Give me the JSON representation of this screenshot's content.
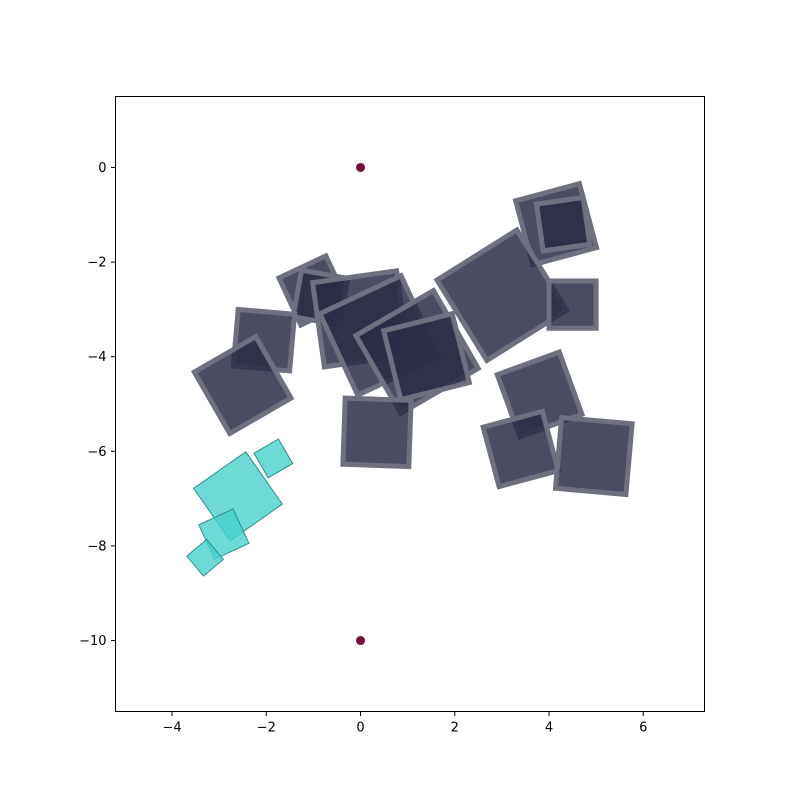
{
  "chart_data": {
    "type": "scatter",
    "title": "",
    "xlabel": "",
    "ylabel": "",
    "xlim": [
      -5.2,
      7.3
    ],
    "ylim": [
      -11.5,
      1.5
    ],
    "xticks": [
      {
        "value": -4,
        "label": "−4"
      },
      {
        "value": -2,
        "label": "−2"
      },
      {
        "value": 0,
        "label": "0"
      },
      {
        "value": 2,
        "label": "2"
      },
      {
        "value": 4,
        "label": "4"
      },
      {
        "value": 6,
        "label": "6"
      }
    ],
    "yticks": [
      {
        "value": 0,
        "label": "0"
      },
      {
        "value": -2,
        "label": "−2"
      },
      {
        "value": -4,
        "label": "−4"
      },
      {
        "value": -6,
        "label": "−6"
      },
      {
        "value": -8,
        "label": "−8"
      },
      {
        "value": -10,
        "label": "−10"
      }
    ],
    "grid": false,
    "legend": "none",
    "series": [
      {
        "marker": "point",
        "color": "#7a0a3c",
        "points": [
          [
            0,
            0
          ],
          [
            0,
            -10
          ]
        ]
      },
      {
        "marker": "rotated-square",
        "color": "#2a2d45",
        "edge_color": "#6e7080",
        "alpha": 0.85,
        "squares": [
          {
            "x": 4.15,
            "y": -1.2,
            "size": 1.4,
            "angle": 15
          },
          {
            "x": 4.3,
            "y": -1.2,
            "size": 1.0,
            "angle": 8
          },
          {
            "x": -1.0,
            "y": -2.6,
            "size": 1.1,
            "angle": 25
          },
          {
            "x": -0.85,
            "y": -2.75,
            "size": 1.0,
            "angle": -10
          },
          {
            "x": 0.0,
            "y": -3.2,
            "size": 1.8,
            "angle": 8
          },
          {
            "x": 0.4,
            "y": -3.55,
            "size": 1.9,
            "angle": 25
          },
          {
            "x": 1.2,
            "y": -3.9,
            "size": 1.9,
            "angle": 30
          },
          {
            "x": 1.4,
            "y": -4.0,
            "size": 1.5,
            "angle": 14
          },
          {
            "x": 3.0,
            "y": -2.7,
            "size": 2.0,
            "angle": 32
          },
          {
            "x": 4.5,
            "y": -2.9,
            "size": 1.0,
            "angle": 0
          },
          {
            "x": -2.05,
            "y": -3.65,
            "size": 1.2,
            "angle": -5
          },
          {
            "x": -2.5,
            "y": -4.6,
            "size": 1.5,
            "angle": 30
          },
          {
            "x": 0.35,
            "y": -5.6,
            "size": 1.4,
            "angle": -2
          },
          {
            "x": 3.8,
            "y": -4.8,
            "size": 1.4,
            "angle": 20
          },
          {
            "x": 3.4,
            "y": -5.95,
            "size": 1.3,
            "angle": 15
          },
          {
            "x": 4.95,
            "y": -6.1,
            "size": 1.5,
            "angle": -5
          }
        ]
      },
      {
        "marker": "rotated-square",
        "color": "#48d1cc",
        "edge_color": "#2a8f8a",
        "alpha": 0.8,
        "squares": [
          {
            "x": -1.85,
            "y": -6.15,
            "size": 0.6,
            "angle": 30
          },
          {
            "x": -2.6,
            "y": -6.95,
            "size": 1.35,
            "angle": 35
          },
          {
            "x": -2.9,
            "y": -7.75,
            "size": 0.8,
            "angle": 25
          },
          {
            "x": -3.3,
            "y": -8.25,
            "size": 0.55,
            "angle": 40
          }
        ]
      }
    ]
  }
}
